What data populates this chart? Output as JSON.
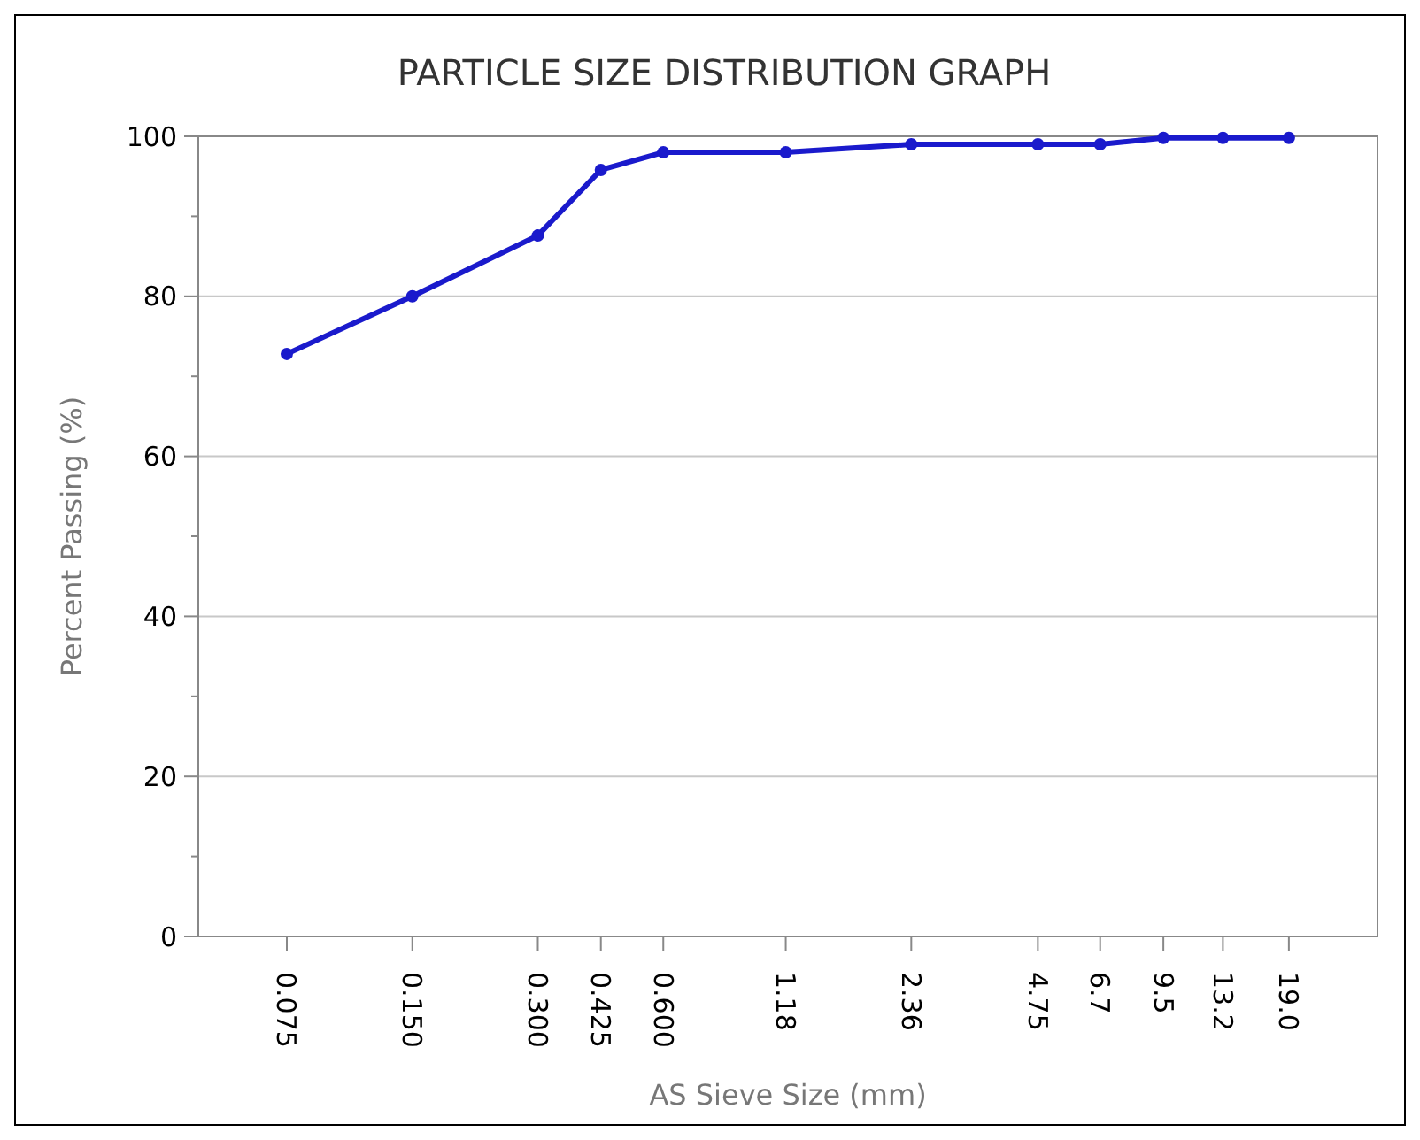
{
  "chart_data": {
    "type": "line",
    "title": "PARTICLE SIZE DISTRIBUTION GRAPH",
    "xlabel": "AS Sieve Size (mm)",
    "ylabel": "Percent Passing (%)",
    "x": [
      0.075,
      0.15,
      0.3,
      0.425,
      0.6,
      1.18,
      2.36,
      4.75,
      6.7,
      9.5,
      13.2,
      19.0
    ],
    "series": [
      {
        "color": "#1a1acc",
        "values": [
          72.8,
          80,
          87.6,
          95.8,
          98,
          98,
          99,
          99,
          99,
          99.8,
          99.8,
          99.8
        ]
      }
    ],
    "log": "x",
    "xlim": [
      0.046,
      31
    ],
    "xticks": [
      {
        "value": 0.075,
        "label": "0.075"
      },
      {
        "value": 0.15,
        "label": "0.150"
      },
      {
        "value": 0.3,
        "label": "0.300"
      },
      {
        "value": 0.425,
        "label": "0.425"
      },
      {
        "value": 0.6,
        "label": "0.600"
      },
      1.18,
      2.36,
      4.75,
      6.7,
      9.5,
      13.2,
      {
        "value": 19,
        "label": "19.0"
      }
    ],
    "ylim": [
      0,
      100
    ],
    "yticks": [
      0,
      {
        "value": 10,
        "label": null
      },
      20,
      {
        "value": 30,
        "label": null
      },
      40,
      {
        "value": 50,
        "label": null
      },
      60,
      {
        "value": 70,
        "label": null
      },
      80,
      {
        "value": 90,
        "label": null
      },
      100
    ],
    "grid": "y",
    "marker": "circle",
    "line_style": "solid"
  }
}
